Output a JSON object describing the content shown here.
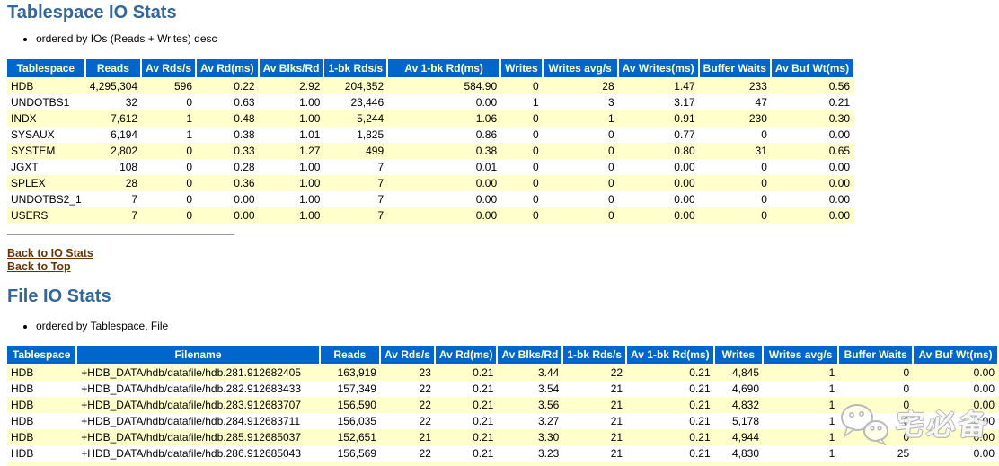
{
  "colors": {
    "header_bg": "#0066CC",
    "header_text": "#FFFFCC",
    "row_alt": "#FFFFCC",
    "heading": "#336699",
    "link": "#663300"
  },
  "tablespace_io": {
    "title": "Tablespace IO Stats",
    "note": "ordered by IOs (Reads + Writes) desc",
    "columns": [
      "Tablespace",
      "Reads",
      "Av Rds/s",
      "Av Rd(ms)",
      "Av Blks/Rd",
      "1-bk Rds/s",
      "Av 1-bk Rd(ms)",
      "Writes",
      "Writes avg/s",
      "Av Writes(ms)",
      "Buffer Waits",
      "Av Buf Wt(ms)"
    ],
    "rows": [
      [
        "HDB",
        "4,295,304",
        "596",
        "0.22",
        "2.92",
        "204,352",
        "584.90",
        "0",
        "28",
        "1.47",
        "233",
        "0.56"
      ],
      [
        "UNDOTBS1",
        "32",
        "0",
        "0.63",
        "1.00",
        "23,446",
        "0.00",
        "1",
        "3",
        "3.17",
        "47",
        "0.21"
      ],
      [
        "INDX",
        "7,612",
        "1",
        "0.48",
        "1.00",
        "5,244",
        "1.06",
        "0",
        "1",
        "0.91",
        "230",
        "0.30"
      ],
      [
        "SYSAUX",
        "6,194",
        "1",
        "0.38",
        "1.01",
        "1,825",
        "0.86",
        "0",
        "0",
        "0.77",
        "0",
        "0.00"
      ],
      [
        "SYSTEM",
        "2,802",
        "0",
        "0.33",
        "1.27",
        "499",
        "0.38",
        "0",
        "0",
        "0.80",
        "31",
        "0.65"
      ],
      [
        "JGXT",
        "108",
        "0",
        "0.28",
        "1.00",
        "7",
        "0.01",
        "0",
        "0",
        "0.00",
        "0",
        "0.00"
      ],
      [
        "SPLEX",
        "28",
        "0",
        "0.36",
        "1.00",
        "7",
        "0.00",
        "0",
        "0",
        "0.00",
        "0",
        "0.00"
      ],
      [
        "UNDOTBS2_1",
        "7",
        "0",
        "0.00",
        "1.00",
        "7",
        "0.00",
        "0",
        "0",
        "0.00",
        "0",
        "0.00"
      ],
      [
        "USERS",
        "7",
        "0",
        "0.00",
        "1.00",
        "7",
        "0.00",
        "0",
        "0",
        "0.00",
        "0",
        "0.00"
      ]
    ]
  },
  "links": {
    "back_to_io_stats": "Back to IO Stats",
    "back_to_top": "Back to Top"
  },
  "file_io": {
    "title": "File IO Stats",
    "note": "ordered by Tablespace, File",
    "columns": [
      "Tablespace",
      "Filename",
      "Reads",
      "Av Rds/s",
      "Av Rd(ms)",
      "Av Blks/Rd",
      "1-bk Rds/s",
      "Av 1-bk Rd(ms)",
      "Writes",
      "Writes avg/s",
      "Buffer Waits",
      "Av Buf Wt(ms)"
    ],
    "rows": [
      [
        "HDB",
        "+HDB_DATA/hdb/datafile/hdb.281.912682405",
        "163,919",
        "23",
        "0.21",
        "3.44",
        "22",
        "0.21",
        "4,845",
        "1",
        "0",
        "0.00"
      ],
      [
        "HDB",
        "+HDB_DATA/hdb/datafile/hdb.282.912683433",
        "157,349",
        "22",
        "0.21",
        "3.54",
        "21",
        "0.21",
        "4,690",
        "1",
        "0",
        "0.00"
      ],
      [
        "HDB",
        "+HDB_DATA/hdb/datafile/hdb.283.912683707",
        "156,590",
        "22",
        "0.21",
        "3.56",
        "21",
        "0.21",
        "4,832",
        "1",
        "0",
        "0.00"
      ],
      [
        "HDB",
        "+HDB_DATA/hdb/datafile/hdb.284.912683711",
        "156,035",
        "22",
        "0.21",
        "3.27",
        "21",
        "0.21",
        "5,178",
        "1",
        "0",
        "0.00"
      ],
      [
        "HDB",
        "+HDB_DATA/hdb/datafile/hdb.285.912685037",
        "152,651",
        "21",
        "0.21",
        "3.30",
        "21",
        "0.21",
        "4,944",
        "1",
        "0",
        "0.00"
      ],
      [
        "HDB",
        "+HDB_DATA/hdb/datafile/hdb.286.912685043",
        "156,569",
        "22",
        "0.21",
        "3.23",
        "21",
        "0.21",
        "4,830",
        "1",
        "25",
        "0.00"
      ]
    ]
  },
  "watermark": {
    "text": "宅必备",
    "icon": "wechat-logo"
  }
}
